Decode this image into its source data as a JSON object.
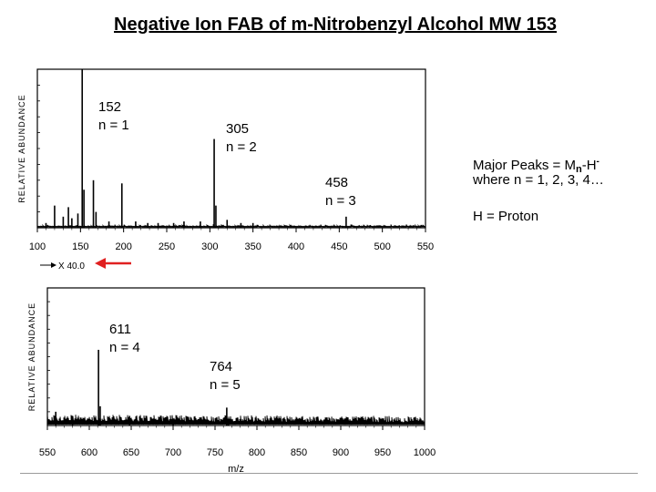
{
  "title": "Negative Ion FAB of m-Nitrobenzyl Alcohol MW 153",
  "side_note": {
    "major_peaks_prefix": "Major Peaks = M",
    "major_peaks_sub": "n",
    "major_peaks_mid": "-H",
    "major_peaks_sup": "-",
    "where": "where n = 1, 2, 3, 4…",
    "h_def": "H = Proton"
  },
  "chart_data": [
    {
      "type": "line",
      "ylabel": "RELATIVE ABUNDANCE",
      "xlim": [
        100,
        550
      ],
      "ylim": [
        0,
        100
      ],
      "xticks": [
        100,
        150,
        200,
        250,
        300,
        350,
        400,
        450,
        500,
        550
      ],
      "scale_note": "→ X 40.0",
      "peaks": [
        {
          "x": 110,
          "y": 3
        },
        {
          "x": 120,
          "y": 14
        },
        {
          "x": 130,
          "y": 7
        },
        {
          "x": 136,
          "y": 13
        },
        {
          "x": 140,
          "y": 6
        },
        {
          "x": 147,
          "y": 9
        },
        {
          "x": 152,
          "y": 100
        },
        {
          "x": 154,
          "y": 24
        },
        {
          "x": 165,
          "y": 30
        },
        {
          "x": 168,
          "y": 10
        },
        {
          "x": 183,
          "y": 4
        },
        {
          "x": 198,
          "y": 28
        },
        {
          "x": 214,
          "y": 4
        },
        {
          "x": 228,
          "y": 3
        },
        {
          "x": 240,
          "y": 3
        },
        {
          "x": 258,
          "y": 3
        },
        {
          "x": 270,
          "y": 4
        },
        {
          "x": 289,
          "y": 4
        },
        {
          "x": 305,
          "y": 56
        },
        {
          "x": 307,
          "y": 14
        },
        {
          "x": 320,
          "y": 5
        },
        {
          "x": 336,
          "y": 3
        },
        {
          "x": 350,
          "y": 3
        },
        {
          "x": 458,
          "y": 7
        }
      ],
      "annotations": [
        {
          "x": 152,
          "label": "152",
          "sublabel": "n = 1"
        },
        {
          "x": 305,
          "label": "305",
          "sublabel": "n = 2"
        },
        {
          "x": 458,
          "label": "458",
          "sublabel": "n = 3"
        }
      ]
    },
    {
      "type": "line",
      "ylabel": "RELATIVE ABUNDANCE",
      "xlabel": "m/z",
      "xlim": [
        550,
        1000
      ],
      "ylim": [
        0,
        100
      ],
      "xticks": [
        550,
        600,
        650,
        700,
        750,
        800,
        850,
        900,
        950,
        1000
      ],
      "peaks": [
        {
          "x": 560,
          "y": 10
        },
        {
          "x": 580,
          "y": 7
        },
        {
          "x": 611,
          "y": 55
        },
        {
          "x": 613,
          "y": 14
        },
        {
          "x": 648,
          "y": 7
        },
        {
          "x": 700,
          "y": 5
        },
        {
          "x": 764,
          "y": 13
        },
        {
          "x": 766,
          "y": 5
        }
      ],
      "annotations": [
        {
          "x": 611,
          "label": "611",
          "sublabel": "n = 4"
        },
        {
          "x": 764,
          "label": "764",
          "sublabel": "n = 5"
        }
      ]
    }
  ]
}
